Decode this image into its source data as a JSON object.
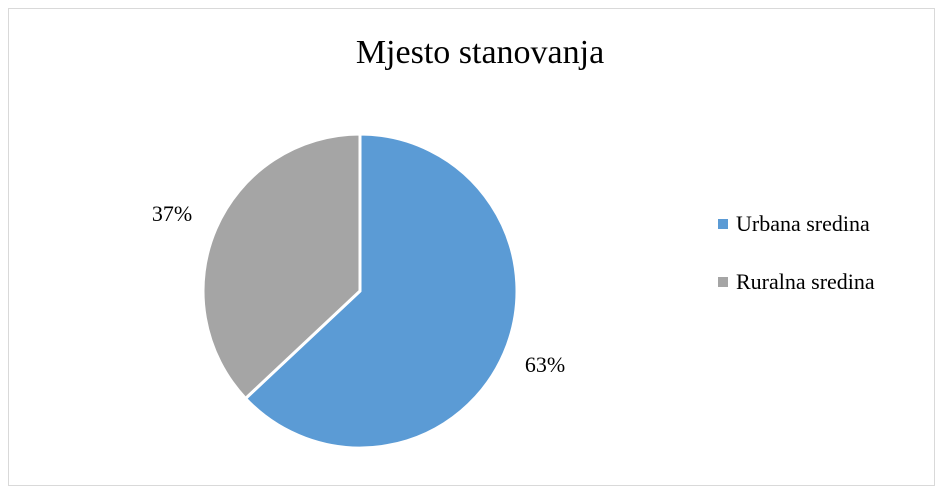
{
  "chart_data": {
    "type": "pie",
    "title": "Mjesto stanovanja",
    "categories": [
      "Urbana sredina",
      "Ruralna sredina"
    ],
    "values": [
      63,
      37
    ],
    "unit": "%",
    "data_labels": [
      "63%",
      "37%"
    ],
    "colors": [
      "#5b9bd5",
      "#a5a5a5"
    ],
    "legend_position": "right"
  }
}
